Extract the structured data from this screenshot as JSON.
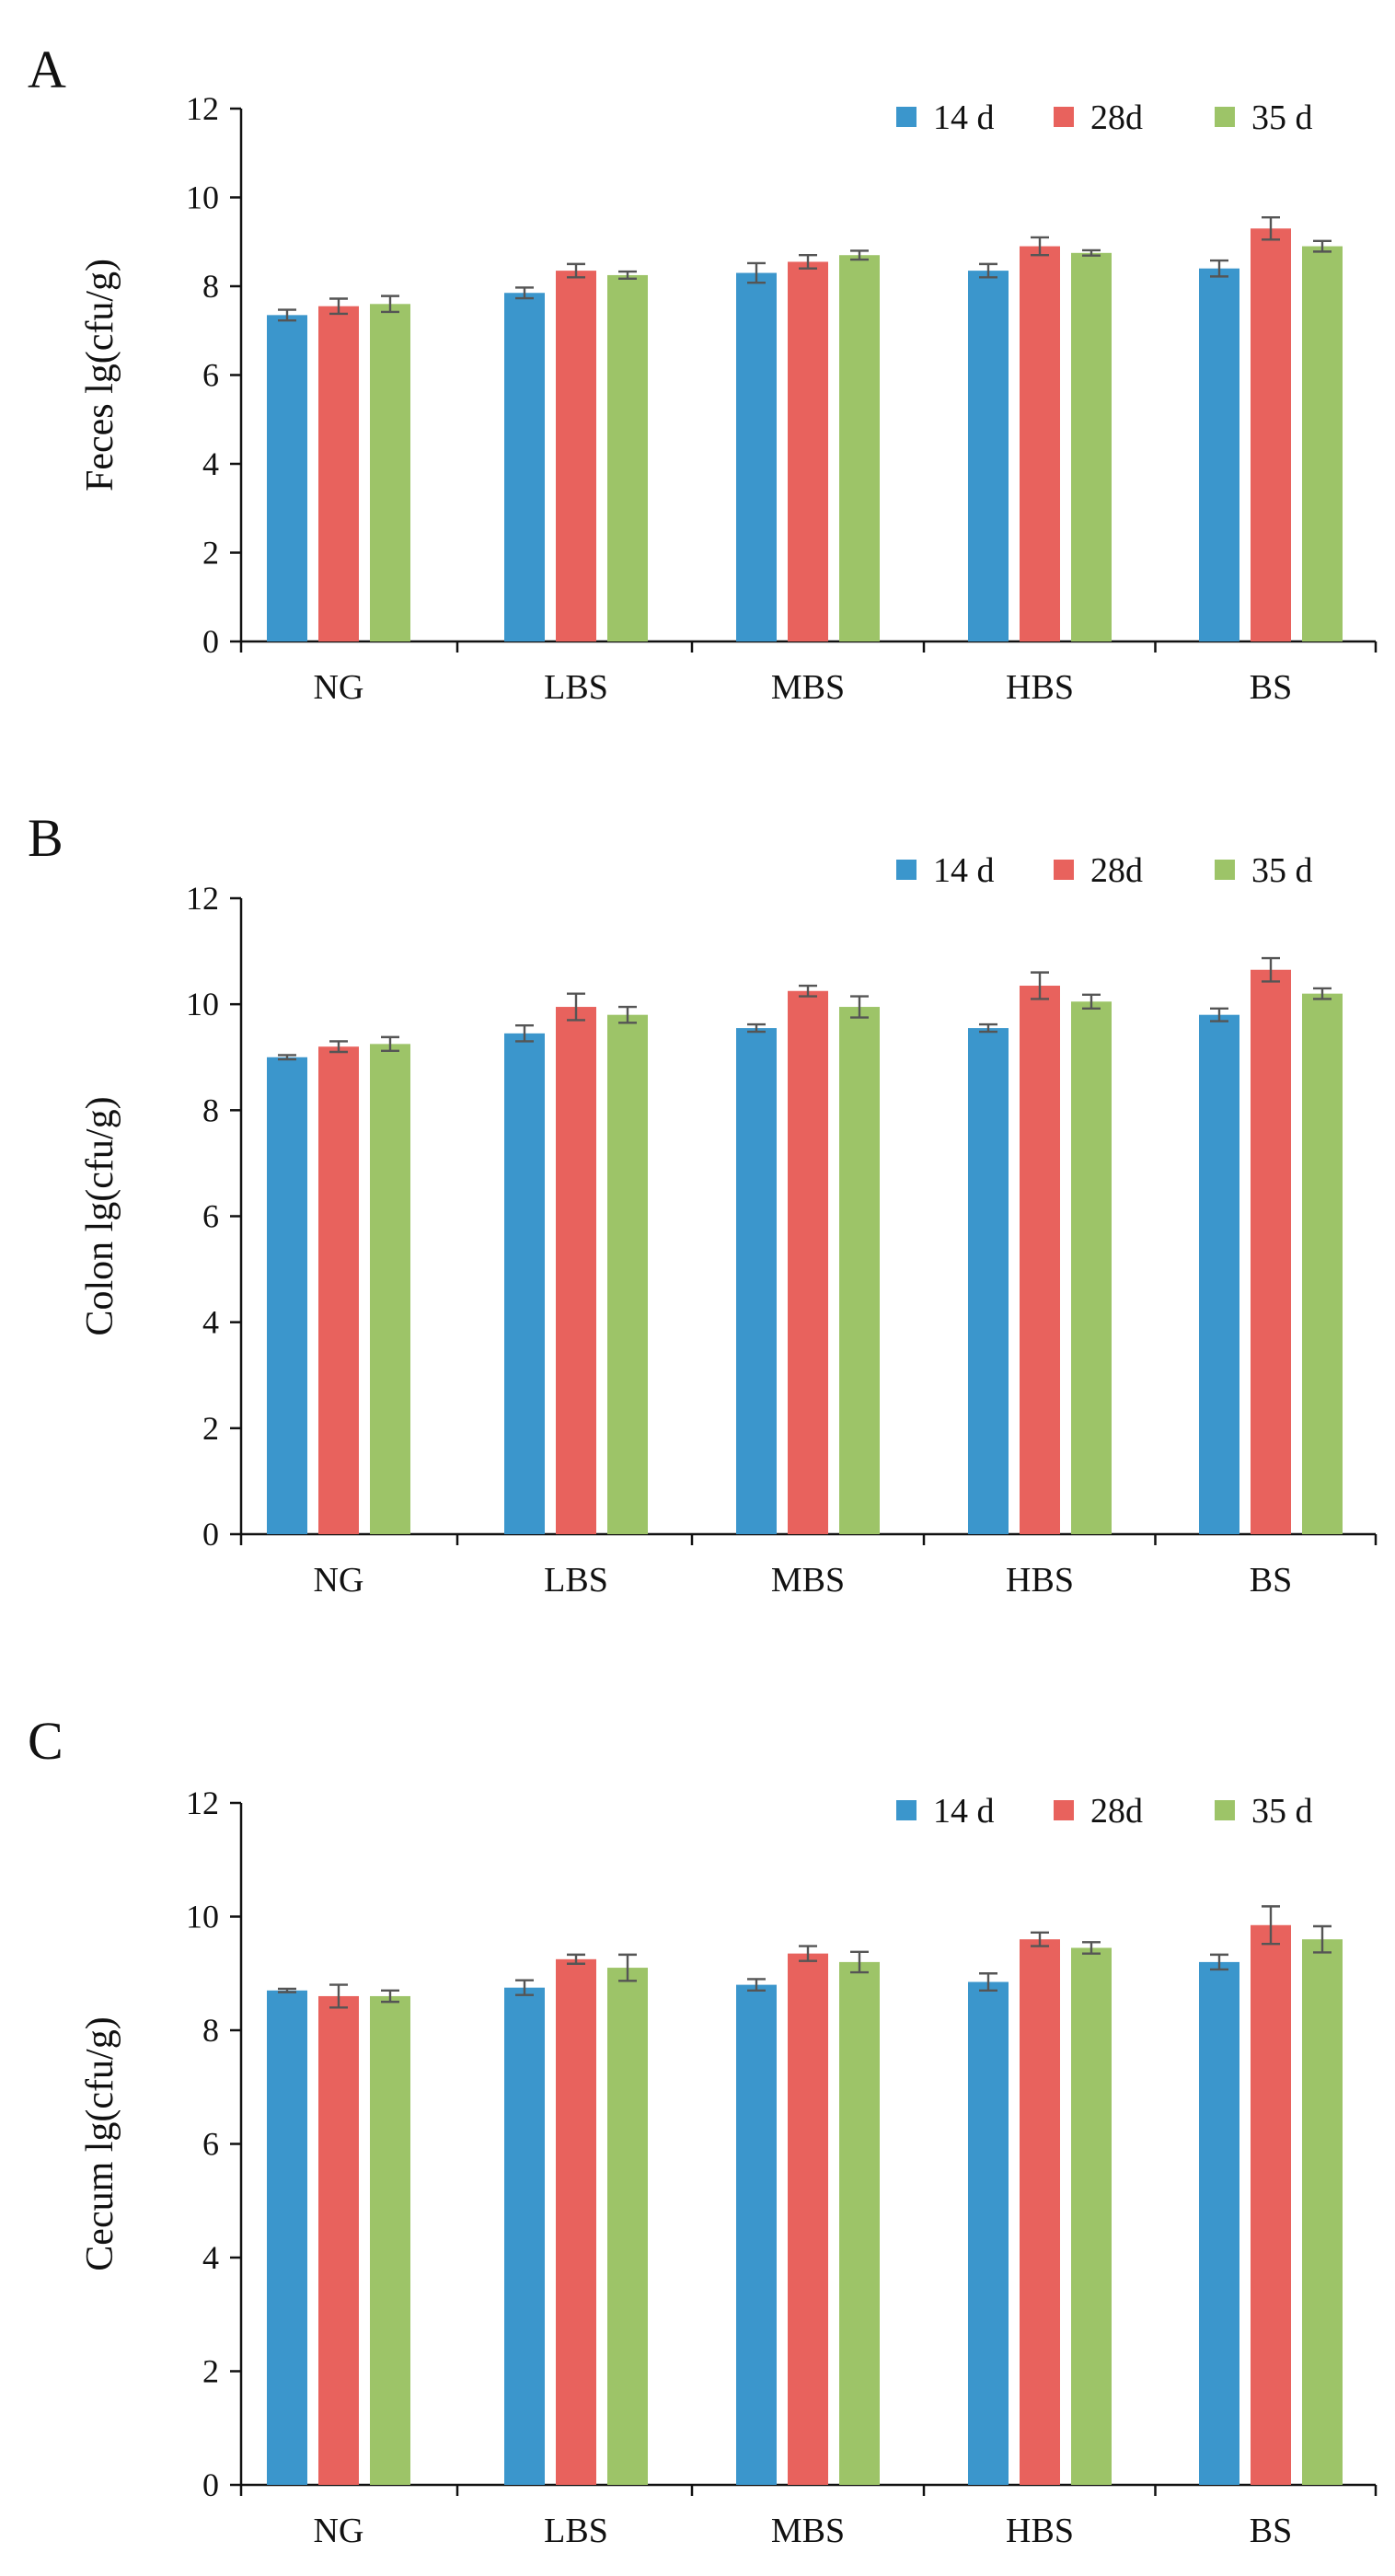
{
  "legend": [
    {
      "name": "14 d",
      "color": "#3b96cc"
    },
    {
      "name": "28d",
      "color": "#e8625d"
    },
    {
      "name": "35 d",
      "color": "#9dc468"
    }
  ],
  "chart_data": [
    {
      "type": "bar",
      "panel_label": "A",
      "ylabel": "Feces lg(cfu/g)",
      "xlabel": "",
      "ylim": [
        0,
        12
      ],
      "yticks": [
        "0",
        "2",
        "4",
        "6",
        "8",
        "10",
        "12"
      ],
      "categories": [
        "NG",
        "LBS",
        "MBS",
        "HBS",
        "BS"
      ],
      "series": [
        {
          "name": "14 d",
          "values": [
            7.35,
            7.85,
            8.3,
            8.35,
            8.4
          ],
          "errors": [
            0.12,
            0.12,
            0.22,
            0.15,
            0.18
          ]
        },
        {
          "name": "28d",
          "values": [
            7.55,
            8.35,
            8.55,
            8.9,
            9.3
          ],
          "errors": [
            0.17,
            0.15,
            0.15,
            0.2,
            0.25
          ]
        },
        {
          "name": "35 d",
          "values": [
            7.6,
            8.25,
            8.7,
            8.75,
            8.9
          ],
          "errors": [
            0.18,
            0.08,
            0.1,
            0.06,
            0.12
          ]
        }
      ],
      "legend_position": "top-right"
    },
    {
      "type": "bar",
      "panel_label": "B",
      "ylabel": "Colon lg(cfu/g)",
      "xlabel": "",
      "ylim": [
        0,
        12
      ],
      "yticks": [
        "0",
        "2",
        "4",
        "6",
        "8",
        "10",
        "12"
      ],
      "categories": [
        "NG",
        "LBS",
        "MBS",
        "HBS",
        "BS"
      ],
      "series": [
        {
          "name": "14 d",
          "values": [
            9.0,
            9.45,
            9.55,
            9.55,
            9.8
          ],
          "errors": [
            0.04,
            0.15,
            0.07,
            0.07,
            0.12
          ]
        },
        {
          "name": "28d",
          "values": [
            9.2,
            9.95,
            10.25,
            10.35,
            10.65
          ],
          "errors": [
            0.1,
            0.25,
            0.1,
            0.25,
            0.22
          ]
        },
        {
          "name": "35 d",
          "values": [
            9.25,
            9.8,
            9.95,
            10.05,
            10.2
          ],
          "errors": [
            0.13,
            0.15,
            0.2,
            0.13,
            0.1
          ]
        }
      ],
      "legend_position": "top-right"
    },
    {
      "type": "bar",
      "panel_label": "C",
      "ylabel": "Cecum lg(cfu/g)",
      "xlabel": "",
      "ylim": [
        0,
        12
      ],
      "yticks": [
        "0",
        "2",
        "4",
        "6",
        "8",
        "10",
        "12"
      ],
      "categories": [
        "NG",
        "LBS",
        "MBS",
        "HBS",
        "BS"
      ],
      "series": [
        {
          "name": "14 d",
          "values": [
            8.7,
            8.75,
            8.8,
            8.85,
            9.2
          ],
          "errors": [
            0.03,
            0.13,
            0.1,
            0.15,
            0.13
          ]
        },
        {
          "name": "28d",
          "values": [
            8.6,
            9.25,
            9.35,
            9.6,
            9.85
          ],
          "errors": [
            0.2,
            0.08,
            0.13,
            0.12,
            0.33
          ]
        },
        {
          "name": "35 d",
          "values": [
            8.6,
            9.1,
            9.2,
            9.45,
            9.6
          ],
          "errors": [
            0.1,
            0.23,
            0.18,
            0.1,
            0.23
          ]
        }
      ],
      "legend_position": "top-right"
    }
  ]
}
